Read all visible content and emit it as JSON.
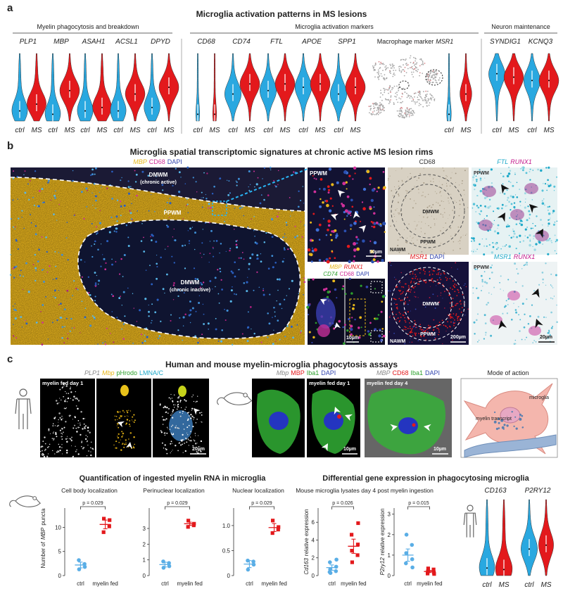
{
  "panel_a": {
    "label": "a",
    "title": "Microglia activation patterns in MS lesions",
    "groups": [
      {
        "title": "Myelin phagocytosis and breakdown",
        "genes": [
          "PLP1",
          "MBP",
          "ASAH1",
          "ACSL1",
          "DPYD"
        ]
      },
      {
        "title": "Microglia activation markers",
        "genes": [
          "CD68",
          "CD74",
          "FTL",
          "APOE",
          "SPP1"
        ]
      },
      {
        "title": "Neuron maintenance",
        "genes": [
          "SYNDIG1",
          "KCNQ3"
        ]
      }
    ],
    "macrophage": {
      "prefix": "Macrophage marker",
      "gene": "MSR1"
    },
    "conditions": [
      {
        "text": "ctrl",
        "color": "#29a8e0"
      },
      {
        "text": "MS",
        "color": "#e3191c"
      }
    ]
  },
  "panel_b": {
    "label": "b",
    "title": "Microglia spatial transcriptomic signatures at chronic active MS lesion rims",
    "main_image": {
      "stain": [
        {
          "text": "MBP",
          "color": "#e8b71a",
          "italic": true
        },
        {
          "text": "CD68",
          "color": "#d0309a"
        },
        {
          "text": "DAPI",
          "color": "#3346b0"
        }
      ],
      "regions": [
        "DMWM",
        "(chronic active)",
        "PPWM",
        "DMWM",
        "(chronic inactive)"
      ]
    },
    "inset_1": {
      "region": "PPWM",
      "scale": "50µm"
    },
    "inset_2": {
      "stain_1": [
        {
          "text": "MBP",
          "color": "#e8b71a",
          "italic": true
        },
        {
          "text": "RUNX1",
          "color": "#e3191c",
          "italic": true
        }
      ],
      "stain_2": [
        {
          "text": "CD74",
          "color": "#2ca02c",
          "italic": true
        },
        {
          "text": "CD68",
          "color": "#d0309a"
        },
        {
          "text": "DAPI",
          "color": "#3346b0"
        }
      ],
      "scale": "10µm"
    },
    "cd68_image": {
      "stain": [
        {
          "text": "CD68",
          "color": "#333333"
        }
      ],
      "regions": [
        "DMWM",
        "PPWM",
        "NAWM"
      ]
    },
    "msr1_image": {
      "stain": [
        {
          "text": "MSR1",
          "color": "#e3191c",
          "italic": true
        },
        {
          "text": "DAPI",
          "color": "#3346b0"
        }
      ],
      "regions": [
        "DMWM",
        "PPWM",
        "NAWM"
      ],
      "scale": "200µm"
    },
    "ftl_image": {
      "stain": [
        {
          "text": "FTL",
          "color": "#1fa9c9",
          "italic": true
        },
        {
          "text": "RUNX1",
          "color": "#c2188b",
          "italic": true
        }
      ],
      "region": "PPWM"
    },
    "msr1_runx1_image": {
      "stain": [
        {
          "text": "MSR1",
          "color": "#1fa9c9",
          "italic": true
        },
        {
          "text": "RUNX1",
          "color": "#c2188b",
          "italic": true
        }
      ],
      "region": "PPWM",
      "scale": "20µm"
    }
  },
  "panel_c": {
    "label": "c",
    "title": "Human and mouse myelin-microglia phagocytosis assays",
    "human_images": {
      "stain": [
        {
          "text": "PLP1",
          "color": "#888888",
          "italic": true
        },
        {
          "text": "Mbp",
          "color": "#e8b71a",
          "italic": true
        },
        {
          "text": "pHrodo",
          "color": "#2ca02c"
        },
        {
          "text": "LMNA/C",
          "color": "#1fa9c9"
        }
      ],
      "condition": "myelin fed day 1",
      "scale": "20µm"
    },
    "mouse_images_day1": {
      "stain": [
        {
          "text": "Mbp",
          "color": "#888888",
          "italic": true
        },
        {
          "text": "MBP",
          "color": "#e3191c"
        },
        {
          "text": "Iba1",
          "color": "#2ca02c"
        },
        {
          "text": "DAPI",
          "color": "#3346b0"
        }
      ],
      "condition": "myelin fed day 1",
      "scale": "10µm"
    },
    "mouse_image_day4": {
      "stain": [
        {
          "text": "MBP",
          "color": "#888888",
          "italic": true
        },
        {
          "text": "CD68",
          "color": "#e3191c"
        },
        {
          "text": "Iba1",
          "color": "#2ca02c"
        },
        {
          "text": "DAPI",
          "color": "#3346b0"
        }
      ],
      "condition": "myelin fed day 4",
      "scale": "10µm"
    },
    "mode_of_action": {
      "title": "Mode of action",
      "labels": [
        "microglia",
        "myelin transcript"
      ]
    },
    "quantification": {
      "title": "Quantification of ingested myelin RNA in microglia",
      "y_label": [
        {
          "text": "Number of"
        },
        {
          "text": "MBP",
          "italic": true
        },
        {
          "text": "puncta"
        }
      ],
      "charts": [
        {
          "type": "dot",
          "title": "Cell body localization",
          "categories": [
            "ctrl",
            "myelin fed"
          ],
          "ylim": [
            0,
            14
          ],
          "yticks": [
            0,
            5,
            10
          ],
          "p_value": "p = 0.029",
          "series": [
            {
              "color": "#5aaee6",
              "marker": "circle",
              "values": [
                1.3,
                2.4,
                3.2,
                1.8
              ],
              "mean": 2.2,
              "sem": 0.6
            },
            {
              "color": "#e3191c",
              "marker": "square",
              "values": [
                11.8,
                10.2,
                9.0,
                11.5
              ],
              "mean": 10.6,
              "sem": 0.9
            }
          ]
        },
        {
          "type": "dot",
          "title": "Perinuclear localization",
          "categories": [
            "ctrl",
            "myelin fed"
          ],
          "ylim": [
            0,
            4.3
          ],
          "yticks": [
            0,
            1,
            2,
            3
          ],
          "p_value": "p = 0.029",
          "series": [
            {
              "color": "#5aaee6",
              "marker": "circle",
              "values": [
                0.5,
                0.8,
                0.9,
                0.6
              ],
              "mean": 0.7,
              "sem": 0.15
            },
            {
              "color": "#e3191c",
              "marker": "square",
              "values": [
                3.5,
                3.2,
                3.1,
                3.3
              ],
              "mean": 3.3,
              "sem": 0.1
            }
          ]
        },
        {
          "type": "dot",
          "title": "Nuclear localization",
          "categories": [
            "ctrl",
            "myelin fed"
          ],
          "ylim": [
            0,
            1.35
          ],
          "yticks": [
            0,
            0.5,
            {
              "value": 1,
              "label": "1.0"
            }
          ],
          "p_value": "p = 0.029",
          "series": [
            {
              "color": "#5aaee6",
              "marker": "circle",
              "values": [
                0.12,
                0.28,
                0.3,
                0.22
              ],
              "mean": 0.23,
              "sem": 0.07
            },
            {
              "color": "#e3191c",
              "marker": "square",
              "values": [
                1.1,
                0.92,
                0.85,
                0.97
              ],
              "mean": 0.96,
              "sem": 0.08
            }
          ]
        }
      ]
    },
    "differential": {
      "title": "Differential gene expression in phagocytosing microglia",
      "subtitle": "Mouse microglia lysates day 4 post myelin ingestion",
      "charts": [
        {
          "type": "dot",
          "y_label": [
            {
              "text": "Cd163",
              "italic": true
            },
            {
              "text": "relative expression"
            }
          ],
          "categories": [
            "ctrl",
            "myelin fed"
          ],
          "ylim": [
            0,
            7.6
          ],
          "yticks": [
            0,
            2,
            4,
            6
          ],
          "p_value": "p = 0.026",
          "series": [
            {
              "color": "#5aaee6",
              "marker": "circle",
              "values": [
                0.3,
                0.5,
                0.7,
                1.0,
                1.5,
                1.8,
                0.4
              ],
              "mean": 0.9,
              "sem": 0.3
            },
            {
              "color": "#e3191c",
              "marker": "square",
              "values": [
                1.5,
                2.3,
                2.8,
                3.5,
                4.6,
                5.9
              ],
              "mean": 3.3,
              "sem": 0.8
            }
          ]
        },
        {
          "type": "dot",
          "y_label": [
            {
              "text": "P2ry12",
              "italic": true
            },
            {
              "text": "relative expression"
            }
          ],
          "categories": [
            "ctrl",
            "myelin fed"
          ],
          "ylim": [
            0,
            3.3
          ],
          "yticks": [
            0,
            1,
            2,
            3
          ],
          "p_value": "p = 0.015",
          "series": [
            {
              "color": "#5aaee6",
              "marker": "circle",
              "values": [
                2.0,
                1.5,
                1.1,
                0.8,
                0.6,
                0.4
              ],
              "mean": 1.0,
              "sem": 0.3
            },
            {
              "color": "#e3191c",
              "marker": "square",
              "values": [
                0.35,
                0.3,
                0.2,
                0.15,
                0.1,
                0.08
              ],
              "mean": 0.2,
              "sem": 0.05
            }
          ]
        }
      ],
      "violins": {
        "genes": [
          "CD163",
          "P2RY12"
        ]
      }
    }
  }
}
